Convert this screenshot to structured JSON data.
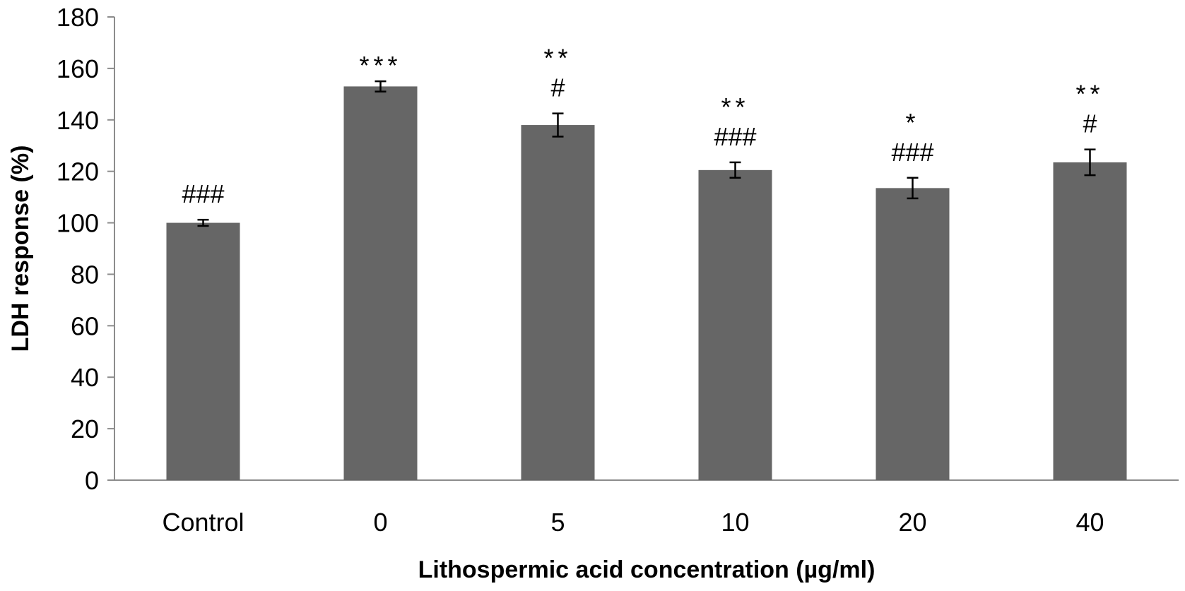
{
  "chart_data": {
    "type": "bar",
    "title": "",
    "xlabel": "Lithospermic acid concentration (µg/ml)",
    "ylabel": "LDH response (%)",
    "ylim": [
      0,
      180
    ],
    "yticks": [
      0,
      20,
      40,
      60,
      80,
      100,
      120,
      140,
      160,
      180
    ],
    "ytick_labels": [
      "0",
      "20",
      "40",
      "60",
      "80",
      "100",
      "120",
      "140",
      "160",
      "180"
    ],
    "categories": [
      "Control",
      "0",
      "5",
      "10",
      "20",
      "40"
    ],
    "values": [
      100,
      153,
      138,
      120.5,
      113.5,
      123.5
    ],
    "errors": [
      1.2,
      2.0,
      4.5,
      3.0,
      4.0,
      5.0
    ],
    "annotations": [
      {
        "hash": "###",
        "star": ""
      },
      {
        "hash": "",
        "star": "***"
      },
      {
        "hash": "#",
        "star": "**"
      },
      {
        "hash": "###",
        "star": "**"
      },
      {
        "hash": "###",
        "star": "*"
      },
      {
        "hash": "#",
        "star": "**"
      }
    ],
    "bar_color": "#666666",
    "grid": false,
    "legend": "none"
  }
}
